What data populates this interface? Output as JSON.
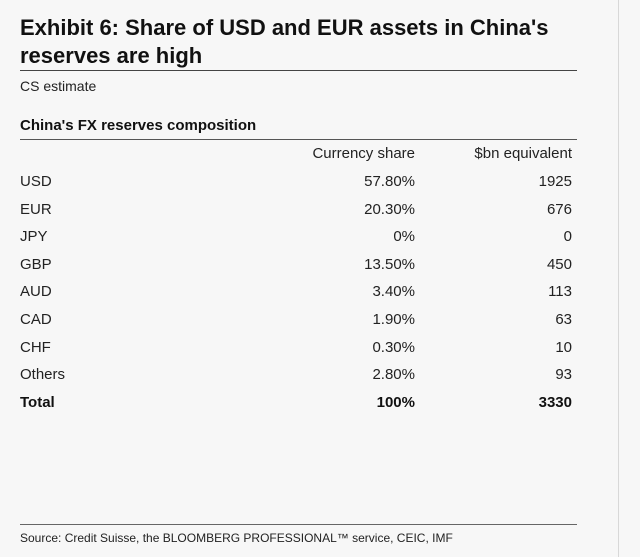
{
  "header": {
    "title_line1": "Exhibit 6: Share of USD and EUR assets in China's",
    "title_line2": "reserves are high",
    "subtitle": "CS estimate",
    "table_heading": "China's FX reserves composition"
  },
  "footer": {
    "source": "Source: Credit Suisse, the BLOOMBERG PROFESSIONAL™ service, CEIC, IMF"
  },
  "chart_data": {
    "type": "table",
    "title": "China's FX reserves composition",
    "columns": [
      "",
      "Currency share",
      "$bn equivalent"
    ],
    "rows": [
      {
        "label": "USD",
        "share": "57.80%",
        "bn": "1925"
      },
      {
        "label": "EUR",
        "share": "20.30%",
        "bn": "676"
      },
      {
        "label": "JPY",
        "share": "0%",
        "bn": "0"
      },
      {
        "label": "GBP",
        "share": "13.50%",
        "bn": "450"
      },
      {
        "label": "AUD",
        "share": "3.40%",
        "bn": "113"
      },
      {
        "label": "CAD",
        "share": "1.90%",
        "bn": "63"
      },
      {
        "label": "CHF",
        "share": "0.30%",
        "bn": "10"
      },
      {
        "label": "Others",
        "share": "2.80%",
        "bn": "93"
      }
    ],
    "total": {
      "label": "Total",
      "share": "100%",
      "bn": "3330"
    }
  }
}
